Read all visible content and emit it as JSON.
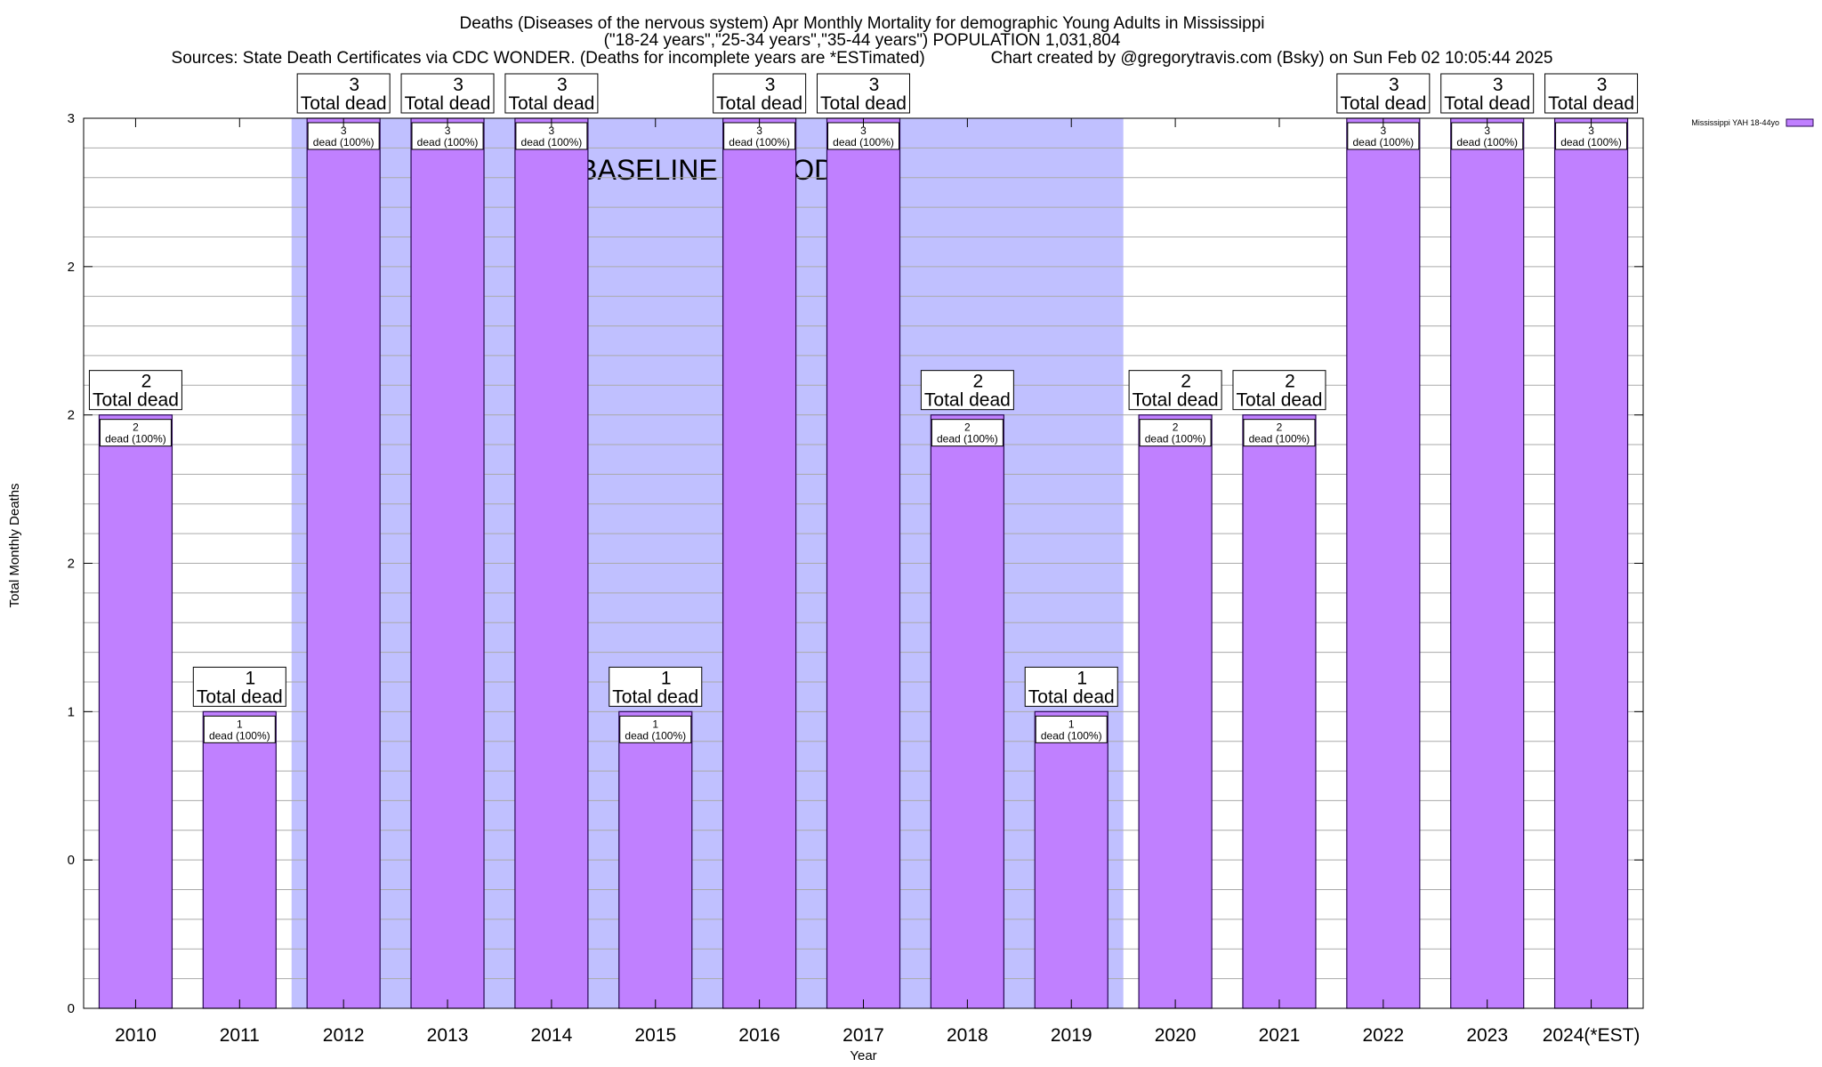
{
  "chart_data": {
    "type": "bar",
    "title_lines": [
      "Deaths (Diseases of the nervous system) Apr Monthly Mortality for demographic Young Adults in Mississippi",
      "(\"18-24 years\",\"25-34 years\",\"35-44 years\") POPULATION 1,031,804",
      "Sources: State Death Certificates via CDC WONDER. (Deaths for incomplete years are *ESTimated)              Chart created by @gregorytravis.com (Bsky) on Sun Feb 02 10:05:44 2025"
    ],
    "xlabel": "Year",
    "ylabel": "Total Monthly Deaths",
    "ylim": [
      0,
      3
    ],
    "y_tick_labels": [
      "0",
      "0",
      "1",
      "2",
      "2",
      "2",
      "3"
    ],
    "grid": "horizontal",
    "categories": [
      "2010",
      "2011",
      "2012",
      "2013",
      "2014",
      "2015",
      "2016",
      "2017",
      "2018",
      "2019",
      "2020",
      "2021",
      "2022",
      "2023",
      "2024(*EST)"
    ],
    "series": [
      {
        "name": "Mississippi YAH 18-44yo",
        "color": "#c080ff",
        "values": [
          2,
          1,
          3,
          3,
          3,
          1,
          3,
          3,
          2,
          1,
          2,
          2,
          3,
          3,
          3
        ]
      }
    ],
    "total_label_suffix": "Total dead",
    "inner_label_suffix": "dead (100%)",
    "baseline": {
      "label": "BASELINE PERIOD",
      "start": "2012",
      "end": "2019",
      "color": "#c0c0ff"
    },
    "legend_position": "top-right",
    "bar_color": "#c080ff",
    "bar_outline_color": "#2a0a55"
  }
}
